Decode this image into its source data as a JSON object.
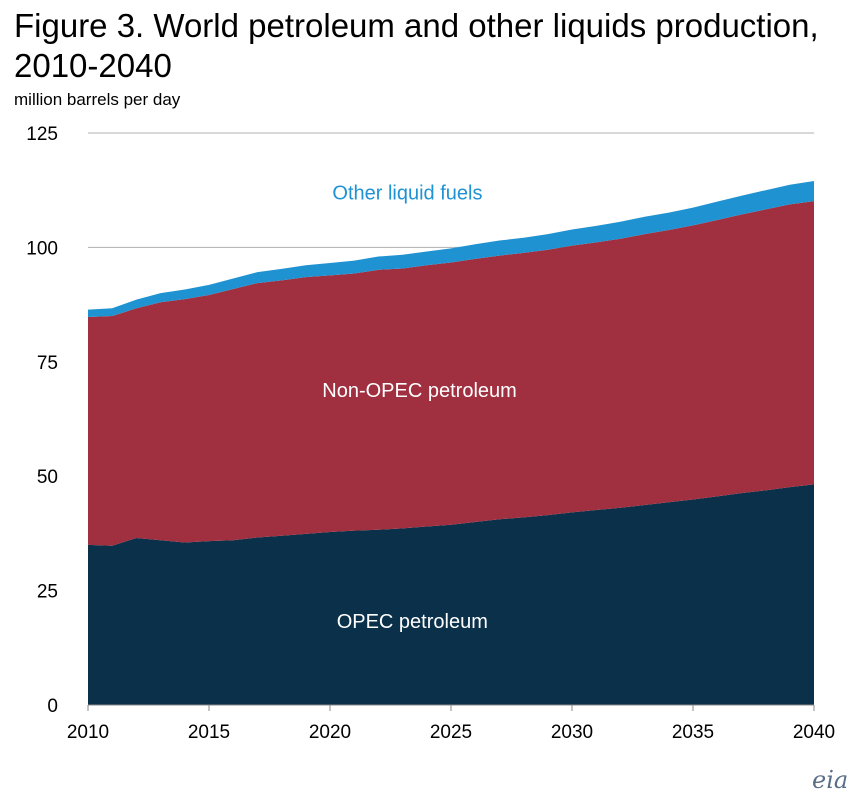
{
  "figure": {
    "title": "Figure 3. World petroleum and other liquids production, 2010-2040",
    "unit_label": "million barrels per day",
    "logo_text": "eia"
  },
  "colors": {
    "opec": "#0b3049",
    "non_opec": "#a03040",
    "other": "#1f93d2",
    "gridline": "#b0b0b0"
  },
  "chart_data": {
    "type": "area",
    "stacked": true,
    "title": "Figure 3. World petroleum and other liquids production, 2010-2040",
    "ylabel": "million barrels per day",
    "xlim": [
      2010,
      2040
    ],
    "ylim": [
      0,
      125
    ],
    "x_ticks": [
      2010,
      2015,
      2020,
      2025,
      2030,
      2035,
      2040
    ],
    "y_ticks": [
      0,
      25,
      50,
      75,
      100,
      125
    ],
    "grid": "horizontal",
    "x": [
      2010,
      2011,
      2012,
      2013,
      2014,
      2015,
      2016,
      2017,
      2018,
      2019,
      2020,
      2021,
      2022,
      2023,
      2024,
      2025,
      2026,
      2027,
      2028,
      2029,
      2030,
      2031,
      2032,
      2033,
      2034,
      2035,
      2036,
      2037,
      2038,
      2039,
      2040
    ],
    "series": [
      {
        "name": "OPEC petroleum",
        "color_key": "opec",
        "values": [
          35.0,
          34.8,
          36.5,
          36.0,
          35.5,
          35.8,
          36.0,
          36.6,
          37.0,
          37.4,
          37.8,
          38.1,
          38.3,
          38.6,
          39.0,
          39.4,
          40.0,
          40.6,
          41.0,
          41.5,
          42.1,
          42.6,
          43.1,
          43.7,
          44.3,
          44.9,
          45.6,
          46.3,
          46.9,
          47.6,
          48.2
        ]
      },
      {
        "name": "Non-OPEC petroleum",
        "color_key": "non_opec",
        "values": [
          49.8,
          50.2,
          50.2,
          52.0,
          53.2,
          53.8,
          54.9,
          55.6,
          55.8,
          56.1,
          56.1,
          56.2,
          56.8,
          56.8,
          57.1,
          57.3,
          57.5,
          57.6,
          57.8,
          58.0,
          58.3,
          58.5,
          58.8,
          59.2,
          59.5,
          59.9,
          60.4,
          60.9,
          61.4,
          61.8,
          61.9
        ]
      },
      {
        "name": "Other liquid fuels",
        "color_key": "other",
        "values": [
          1.6,
          1.7,
          1.9,
          2.0,
          2.1,
          2.2,
          2.3,
          2.4,
          2.5,
          2.6,
          2.7,
          2.8,
          2.9,
          3.0,
          3.0,
          3.1,
          3.2,
          3.3,
          3.3,
          3.4,
          3.5,
          3.6,
          3.7,
          3.8,
          3.8,
          3.9,
          4.0,
          4.1,
          4.2,
          4.3,
          4.4
        ]
      }
    ],
    "annotations": [
      "Other liquid fuels",
      "Non-OPEC petroleum",
      "OPEC petroleum"
    ]
  }
}
